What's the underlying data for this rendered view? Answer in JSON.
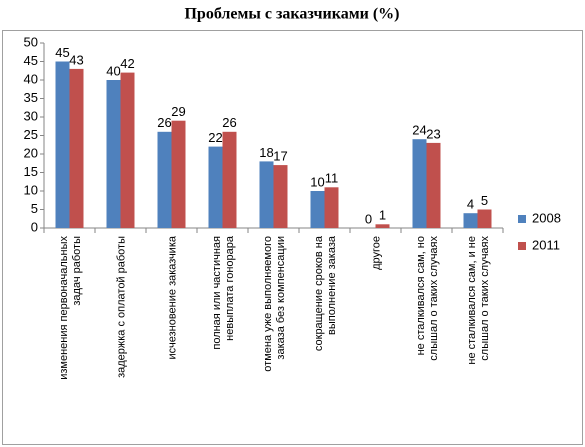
{
  "chart_data": {
    "type": "bar",
    "title": "Проблемы с заказчиками (%)",
    "categories": [
      "изменения первоначальных\nзадач работы",
      "задержка с оплатой работы",
      "исчезновение заказчика",
      "полная или частичная\nневыплата гонорара",
      "отмена уже выполняемого\nзаказа без компенсации",
      "сокращение сроков на\nвыполнение заказа",
      "другое",
      "не сталкивался сам, но\nслышал о таких случаях",
      "не сталкивался сам, и не\nслышал о таких случаях"
    ],
    "series": [
      {
        "name": "2008",
        "color": "#4f81bd",
        "values": [
          45,
          40,
          26,
          22,
          18,
          10,
          0,
          24,
          4
        ]
      },
      {
        "name": "2011",
        "color": "#c0504d",
        "values": [
          43,
          42,
          29,
          26,
          17,
          11,
          1,
          23,
          5
        ]
      }
    ],
    "ylim": [
      0,
      50
    ],
    "yticks": [
      0,
      5,
      10,
      15,
      20,
      25,
      30,
      35,
      40,
      45,
      50
    ],
    "grid": false,
    "legend": "right"
  }
}
